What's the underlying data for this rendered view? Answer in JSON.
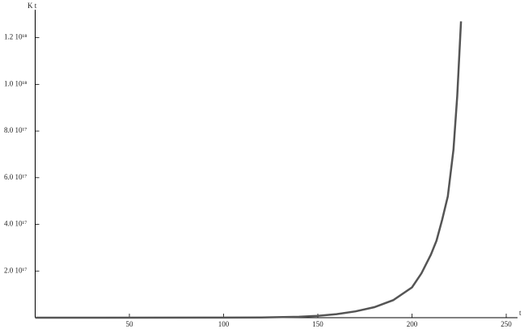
{
  "chart_data": {
    "type": "line",
    "y_label": "K t",
    "x_label": "t",
    "x": [
      0,
      100,
      120,
      140,
      150,
      160,
      170,
      180,
      190,
      200,
      205,
      210,
      213,
      216,
      219,
      222,
      224,
      226
    ],
    "series": [
      {
        "name": "K t",
        "color": "#555555",
        "values": [
          0,
          300000000000000.0,
          1000000000000000.0,
          4000000000000000.0,
          8000000000000000.0,
          1.5e+16,
          2.7e+16,
          4.5e+16,
          7.5e+16,
          1.3e+17,
          1.9e+17,
          2.7e+17,
          3.3e+17,
          4.2e+17,
          5.2e+17,
          7.2e+17,
          9.5e+17,
          1.27e+18
        ]
      }
    ],
    "xlim": [
      0,
      256
    ],
    "xticks": [
      50,
      100,
      150,
      200,
      250
    ],
    "ylim": [
      0,
      1.32e+18
    ],
    "yticks": [
      {
        "value": 2e+17,
        "label": "2.0  10¹⁷"
      },
      {
        "value": 4e+17,
        "label": "4.0  10¹⁷"
      },
      {
        "value": 6e+17,
        "label": "6.0  10¹⁷"
      },
      {
        "value": 8e+17,
        "label": "8.0  10¹⁷"
      },
      {
        "value": 1e+18,
        "label": "1.0  10¹⁸"
      },
      {
        "value": 1.2e+18,
        "label": "1.2  10¹⁸"
      }
    ],
    "grid": false
  }
}
